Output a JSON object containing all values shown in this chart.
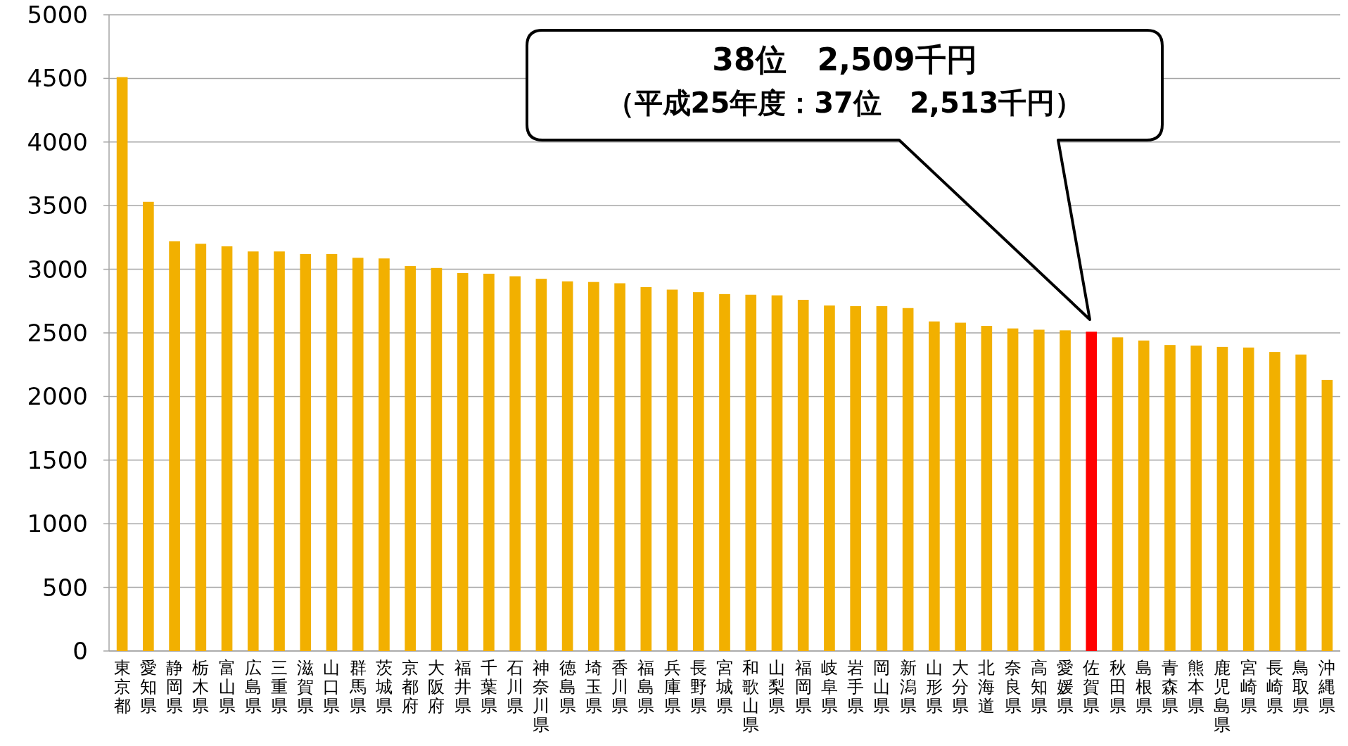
{
  "chart_data": {
    "type": "bar",
    "categories": [
      "東京都",
      "愛知県",
      "静岡県",
      "栃木県",
      "富山県",
      "広島県",
      "三重県",
      "滋賀県",
      "山口県",
      "群馬県",
      "茨城県",
      "京都府",
      "大阪府",
      "福井県",
      "千葉県",
      "石川県",
      "神奈川県",
      "徳島県",
      "埼玉県",
      "香川県",
      "福島県",
      "兵庫県",
      "長野県",
      "宮城県",
      "和歌山県",
      "山梨県",
      "福岡県",
      "岐阜県",
      "岩手県",
      "岡山県",
      "新潟県",
      "山形県",
      "大分県",
      "北海道",
      "奈良県",
      "高知県",
      "愛媛県",
      "佐賀県",
      "秋田県",
      "島根県",
      "青森県",
      "熊本県",
      "鹿児島県",
      "宮崎県",
      "長崎県",
      "鳥取県",
      "沖縄県"
    ],
    "values": [
      4510,
      3530,
      3220,
      3200,
      3180,
      3140,
      3140,
      3120,
      3120,
      3090,
      3085,
      3025,
      3010,
      2970,
      2965,
      2945,
      2925,
      2905,
      2900,
      2890,
      2860,
      2840,
      2820,
      2805,
      2800,
      2795,
      2760,
      2715,
      2710,
      2710,
      2695,
      2590,
      2580,
      2555,
      2535,
      2525,
      2520,
      2509,
      2465,
      2440,
      2405,
      2400,
      2390,
      2385,
      2350,
      2330,
      2130
    ],
    "colors": [
      "#f2b000",
      "#f2b000",
      "#f2b000",
      "#f2b000",
      "#f2b000",
      "#f2b000",
      "#f2b000",
      "#f2b000",
      "#f2b000",
      "#f2b000",
      "#f2b000",
      "#f2b000",
      "#f2b000",
      "#f2b000",
      "#f2b000",
      "#f2b000",
      "#f2b000",
      "#f2b000",
      "#f2b000",
      "#f2b000",
      "#f2b000",
      "#f2b000",
      "#f2b000",
      "#f2b000",
      "#f2b000",
      "#f2b000",
      "#f2b000",
      "#f2b000",
      "#f2b000",
      "#f2b000",
      "#f2b000",
      "#f2b000",
      "#f2b000",
      "#f2b000",
      "#f2b000",
      "#f2b000",
      "#f2b000",
      "#ff0000",
      "#f2b000",
      "#f2b000",
      "#f2b000",
      "#f2b000",
      "#f2b000",
      "#f2b000",
      "#f2b000",
      "#f2b000",
      "#f2b000"
    ],
    "ylim": [
      0,
      5000
    ],
    "yticks": [
      0,
      500,
      1000,
      1500,
      2000,
      2500,
      3000,
      3500,
      4000,
      4500,
      5000
    ],
    "grid": "y",
    "annotations": [
      "38位　2,509千円",
      "（平成25年度：37位　2,513千円）"
    ]
  }
}
